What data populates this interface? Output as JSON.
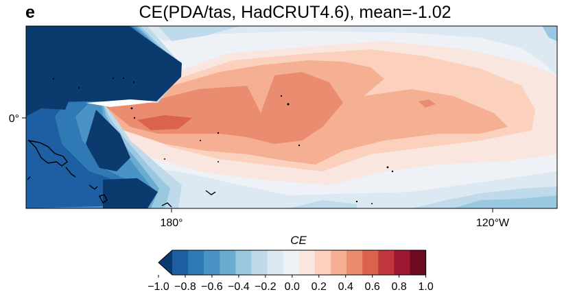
{
  "panel_letter": "e",
  "title": "CE(PDA/tas, HadCRUT4.6), mean=-1.02",
  "map": {
    "x_ticks": [
      "180°",
      "120°W"
    ],
    "y_ticks": [
      "0°"
    ]
  },
  "colorbar": {
    "label": "CE",
    "ticks": [
      "−1.0",
      "−0.8",
      "−0.6",
      "−0.4",
      "−0.2",
      "0.0",
      "0.2",
      "0.4",
      "0.6",
      "0.8",
      "1.0"
    ],
    "colors": [
      "#0b3a6e",
      "#1d5fa2",
      "#2f79b5",
      "#4a93c6",
      "#6aacd0",
      "#99c8e0",
      "#bfdaea",
      "#dce9f2",
      "#eef2f6",
      "#f8e6df",
      "#fbd0bc",
      "#f5af92",
      "#ea8c6f",
      "#d9634f",
      "#c2373d",
      "#9d1830",
      "#6c0a22"
    ],
    "extend": "min"
  }
}
